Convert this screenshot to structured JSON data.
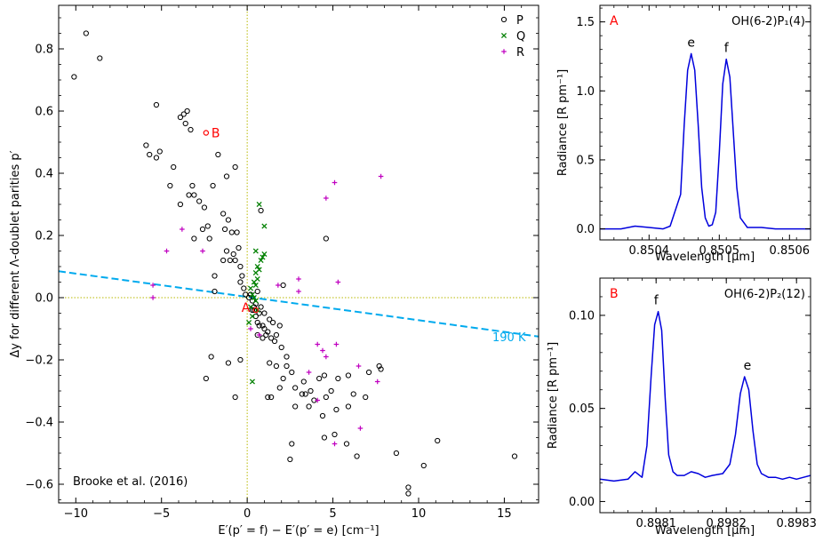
{
  "chart_data": [
    {
      "panel": "main",
      "type": "scatter",
      "xlabel": "E′(p′ = f) − E′(p′ = e) [cm⁻¹]",
      "ylabel": "Δy for different Λ-doublet parities p′",
      "xlim": [
        -11,
        17
      ],
      "ylim": [
        -0.66,
        0.94
      ],
      "xticks": [
        -10,
        -5,
        0,
        5,
        10,
        15
      ],
      "yticks": [
        -0.6,
        -0.4,
        -0.2,
        0.0,
        0.2,
        0.4,
        0.6,
        0.8
      ],
      "legend_position": "top-right",
      "source_note": "Brooke et al. (2016)",
      "series": [
        {
          "name": "P",
          "marker": "circle",
          "color": "#000000",
          "points": [
            [
              -10.1,
              0.71
            ],
            [
              -9.4,
              0.85
            ],
            [
              -8.6,
              0.77
            ],
            [
              -5.3,
              0.62
            ],
            [
              -5.9,
              0.49
            ],
            [
              -5.7,
              0.46
            ],
            [
              -5.1,
              0.47
            ],
            [
              -5.3,
              0.45
            ],
            [
              -4.5,
              0.36
            ],
            [
              -4.3,
              0.42
            ],
            [
              -3.9,
              0.58
            ],
            [
              -3.7,
              0.59
            ],
            [
              -3.5,
              0.6
            ],
            [
              -3.6,
              0.56
            ],
            [
              -3.3,
              0.54
            ],
            [
              -3.9,
              0.3
            ],
            [
              -3.4,
              0.33
            ],
            [
              -3.2,
              0.36
            ],
            [
              -3.1,
              0.33
            ],
            [
              -2.8,
              0.31
            ],
            [
              -2.6,
              0.22
            ],
            [
              -2.5,
              0.29
            ],
            [
              -2.3,
              0.23
            ],
            [
              -2.0,
              0.36
            ],
            [
              -1.7,
              0.46
            ],
            [
              -1.2,
              0.39
            ],
            [
              -0.7,
              0.42
            ],
            [
              -3.1,
              0.19
            ],
            [
              -2.2,
              0.19
            ],
            [
              -1.9,
              0.07
            ],
            [
              -1.9,
              0.02
            ],
            [
              -1.4,
              0.27
            ],
            [
              -1.3,
              0.22
            ],
            [
              -1.2,
              0.15
            ],
            [
              -1.1,
              0.25
            ],
            [
              -0.9,
              0.21
            ],
            [
              -0.8,
              0.14
            ],
            [
              -0.6,
              0.21
            ],
            [
              -0.5,
              0.16
            ],
            [
              -0.4,
              0.1
            ],
            [
              -0.3,
              0.07
            ],
            [
              -1.4,
              0.12
            ],
            [
              -1.0,
              0.12
            ],
            [
              -0.7,
              0.12
            ],
            [
              -0.4,
              0.05
            ],
            [
              -0.2,
              0.03
            ],
            [
              -0.1,
              0.01
            ],
            [
              0.1,
              0.0
            ],
            [
              0.3,
              -0.01
            ],
            [
              0.4,
              -0.03
            ],
            [
              0.5,
              -0.06
            ],
            [
              0.6,
              -0.08
            ],
            [
              0.7,
              -0.05
            ],
            [
              0.8,
              -0.03
            ],
            [
              0.9,
              -0.09
            ],
            [
              1.0,
              -0.1
            ],
            [
              1.2,
              -0.11
            ],
            [
              1.4,
              -0.13
            ],
            [
              1.6,
              -0.14
            ],
            [
              1.7,
              -0.12
            ],
            [
              1.9,
              -0.09
            ],
            [
              2.0,
              -0.16
            ],
            [
              2.3,
              -0.19
            ],
            [
              1.3,
              -0.21
            ],
            [
              1.7,
              -0.22
            ],
            [
              2.3,
              -0.22
            ],
            [
              2.6,
              -0.24
            ],
            [
              2.8,
              -0.29
            ],
            [
              3.4,
              -0.31
            ],
            [
              3.3,
              -0.27
            ],
            [
              3.7,
              -0.3
            ],
            [
              3.9,
              -0.33
            ],
            [
              4.2,
              -0.26
            ],
            [
              4.5,
              -0.25
            ],
            [
              4.9,
              -0.3
            ],
            [
              5.3,
              -0.26
            ],
            [
              5.9,
              -0.25
            ],
            [
              6.2,
              -0.31
            ],
            [
              7.1,
              -0.24
            ],
            [
              7.7,
              -0.22
            ],
            [
              7.8,
              -0.23
            ],
            [
              1.9,
              -0.29
            ],
            [
              1.4,
              -0.32
            ],
            [
              1.2,
              -0.32
            ],
            [
              2.1,
              -0.26
            ],
            [
              4.4,
              -0.38
            ],
            [
              5.2,
              -0.36
            ],
            [
              5.9,
              -0.35
            ],
            [
              6.9,
              -0.32
            ],
            [
              4.5,
              -0.45
            ],
            [
              5.1,
              -0.44
            ],
            [
              5.8,
              -0.47
            ],
            [
              6.4,
              -0.51
            ],
            [
              2.6,
              -0.47
            ],
            [
              2.5,
              -0.52
            ],
            [
              8.7,
              -0.5
            ],
            [
              9.4,
              -0.61
            ],
            [
              9.4,
              -0.63
            ],
            [
              10.3,
              -0.54
            ],
            [
              11.1,
              -0.46
            ],
            [
              15.6,
              -0.51
            ],
            [
              -2.4,
              -0.26
            ],
            [
              -2.1,
              -0.19
            ],
            [
              -1.1,
              -0.21
            ],
            [
              -0.4,
              -0.2
            ],
            [
              -0.7,
              -0.32
            ],
            [
              0.8,
              0.28
            ],
            [
              4.6,
              0.19
            ],
            [
              0.4,
              -0.04
            ],
            [
              0.5,
              -0.02
            ],
            [
              0.2,
              0.01
            ],
            [
              0.6,
              0.02
            ],
            [
              1.0,
              -0.05
            ],
            [
              1.3,
              -0.07
            ],
            [
              0.7,
              -0.09
            ],
            [
              1.1,
              -0.12
            ],
            [
              1.5,
              -0.08
            ],
            [
              0.3,
              -0.04
            ],
            [
              0.6,
              -0.12
            ],
            [
              2.1,
              0.04
            ],
            [
              0.9,
              -0.13
            ],
            [
              2.8,
              -0.35
            ],
            [
              3.2,
              -0.31
            ],
            [
              3.6,
              -0.35
            ],
            [
              4.6,
              -0.32
            ]
          ]
        },
        {
          "name": "Q",
          "marker": "x",
          "color": "#008000",
          "points": [
            [
              0.7,
              0.3
            ],
            [
              1.0,
              0.23
            ],
            [
              0.5,
              0.15
            ],
            [
              0.9,
              0.13
            ],
            [
              1.0,
              0.14
            ],
            [
              0.6,
              0.1
            ],
            [
              0.5,
              0.08
            ],
            [
              0.7,
              0.09
            ],
            [
              0.8,
              0.12
            ],
            [
              0.4,
              0.05
            ],
            [
              0.5,
              0.04
            ],
            [
              0.2,
              0.03
            ],
            [
              0.3,
              0.01
            ],
            [
              0.4,
              0.0
            ],
            [
              0.5,
              -0.01
            ],
            [
              0.2,
              -0.03
            ],
            [
              0.6,
              -0.04
            ],
            [
              0.3,
              -0.06
            ],
            [
              0.1,
              -0.08
            ],
            [
              0.3,
              -0.27
            ],
            [
              0.6,
              0.06
            ]
          ]
        },
        {
          "name": "R",
          "marker": "plus",
          "color": "#c000c0",
          "points": [
            [
              -5.5,
              0.04
            ],
            [
              -5.5,
              0.0
            ],
            [
              -4.7,
              0.15
            ],
            [
              -3.8,
              0.22
            ],
            [
              -2.6,
              0.15
            ],
            [
              4.6,
              0.32
            ],
            [
              5.1,
              0.37
            ],
            [
              7.8,
              0.39
            ],
            [
              5.3,
              0.05
            ],
            [
              3.0,
              0.06
            ],
            [
              3.0,
              0.02
            ],
            [
              4.1,
              -0.15
            ],
            [
              4.4,
              -0.17
            ],
            [
              4.6,
              -0.19
            ],
            [
              5.2,
              -0.15
            ],
            [
              3.6,
              -0.24
            ],
            [
              4.1,
              -0.33
            ],
            [
              6.5,
              -0.22
            ],
            [
              7.6,
              -0.27
            ],
            [
              6.6,
              -0.42
            ],
            [
              5.1,
              -0.47
            ],
            [
              0.7,
              -0.12
            ],
            [
              0.2,
              -0.1
            ],
            [
              1.8,
              0.04
            ]
          ]
        }
      ],
      "annotations": [
        {
          "text": "A",
          "x": 0.5,
          "y": -0.04,
          "color": "#ff0000"
        },
        {
          "text": "B",
          "x": -2.4,
          "y": 0.53,
          "color": "#ff0000"
        }
      ],
      "fit_line": {
        "label": "190 K",
        "color": "#00aaee",
        "x": [
          -11,
          17
        ],
        "y": [
          0.085,
          -0.125
        ]
      },
      "reference_lines": {
        "x": 0.0,
        "y": 0.0,
        "color": "#b8b800"
      }
    },
    {
      "panel": "A",
      "panel_label": "A",
      "type": "line",
      "title": "OH(6-2)P₁(4)",
      "xlabel": "Wavelength [μm]",
      "ylabel": "Radiance [R pm⁻¹]",
      "xlim": [
        0.85033,
        0.85063
      ],
      "ylim": [
        -0.08,
        1.62
      ],
      "xticks": [
        0.8504,
        0.8505,
        0.8506
      ],
      "yticks": [
        0.0,
        0.5,
        1.0,
        1.5
      ],
      "peak_labels": [
        {
          "text": "e",
          "x": 0.85046,
          "y": 1.27
        },
        {
          "text": "f",
          "x": 0.85051,
          "y": 1.23
        }
      ],
      "series": [
        {
          "name": "spectrum",
          "color": "#0000dd",
          "x": [
            0.85033,
            0.85036,
            0.85038,
            0.8504,
            0.85042,
            0.85043,
            0.850445,
            0.85045,
            0.850455,
            0.85046,
            0.850465,
            0.85047,
            0.850475,
            0.85048,
            0.850485,
            0.85049,
            0.850495,
            0.8505,
            0.850505,
            0.85051,
            0.850515,
            0.85052,
            0.850525,
            0.85053,
            0.85054,
            0.85056,
            0.85058,
            0.8506,
            0.85063
          ],
          "y": [
            0.0,
            0.0,
            0.02,
            0.01,
            0.0,
            0.02,
            0.25,
            0.75,
            1.15,
            1.27,
            1.15,
            0.75,
            0.3,
            0.08,
            0.02,
            0.03,
            0.12,
            0.55,
            1.05,
            1.23,
            1.1,
            0.7,
            0.3,
            0.08,
            0.01,
            0.01,
            0.0,
            0.0,
            0.0
          ]
        }
      ]
    },
    {
      "panel": "B",
      "panel_label": "B",
      "type": "line",
      "title": "OH(6-2)P₂(12)",
      "xlabel": "Wavelength [μm]",
      "ylabel": "Radiance [R pm⁻¹]",
      "xlim": [
        0.89802,
        0.89832
      ],
      "ylim": [
        -0.006,
        0.12
      ],
      "xticks": [
        0.8981,
        0.8982,
        0.8983
      ],
      "yticks": [
        0.0,
        0.05,
        0.1
      ],
      "peak_labels": [
        {
          "text": "f",
          "x": 0.8981,
          "y": 0.102
        },
        {
          "text": "e",
          "x": 0.89823,
          "y": 0.067
        }
      ],
      "series": [
        {
          "name": "spectrum",
          "color": "#0000dd",
          "x": [
            0.89802,
            0.89804,
            0.89806,
            0.89807,
            0.89808,
            0.898087,
            0.898093,
            0.898098,
            0.898103,
            0.898108,
            0.898113,
            0.898118,
            0.898124,
            0.89813,
            0.89814,
            0.89815,
            0.89816,
            0.89817,
            0.89818,
            0.898195,
            0.898205,
            0.898213,
            0.89822,
            0.898226,
            0.898232,
            0.898238,
            0.898244,
            0.89825,
            0.89826,
            0.89827,
            0.89828,
            0.89829,
            0.8983,
            0.89831,
            0.89832
          ],
          "y": [
            0.012,
            0.011,
            0.012,
            0.016,
            0.013,
            0.03,
            0.068,
            0.095,
            0.102,
            0.092,
            0.055,
            0.025,
            0.016,
            0.014,
            0.014,
            0.016,
            0.015,
            0.013,
            0.014,
            0.015,
            0.02,
            0.036,
            0.058,
            0.067,
            0.06,
            0.038,
            0.02,
            0.015,
            0.013,
            0.013,
            0.012,
            0.013,
            0.012,
            0.013,
            0.014
          ]
        }
      ]
    }
  ]
}
